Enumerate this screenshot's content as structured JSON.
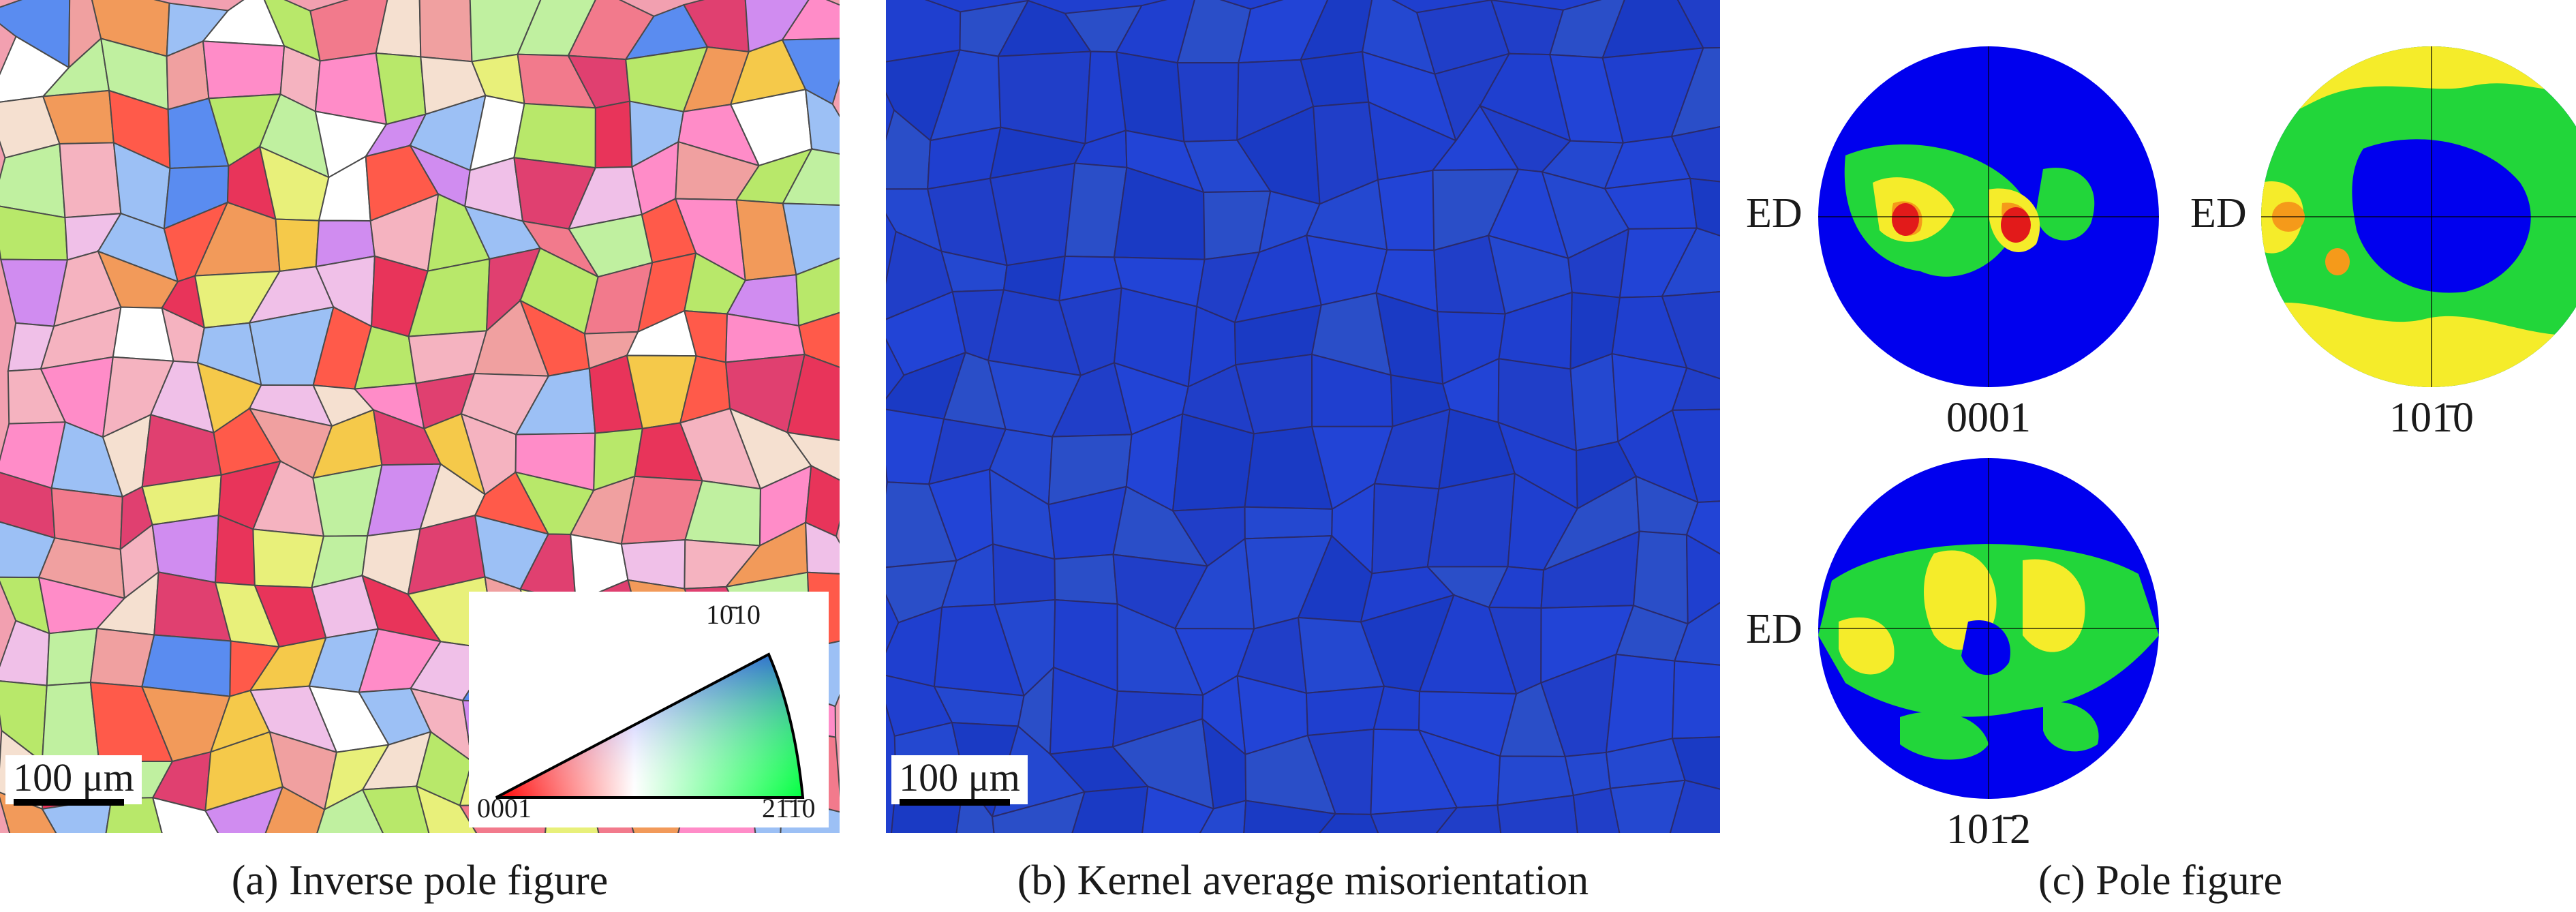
{
  "panels": {
    "a": {
      "caption": "(a) Inverse pole figure",
      "scale_bar": "100 μm",
      "legend": {
        "top": "10̄10",
        "bottom_left": "0001",
        "bottom_right": "21̄1̄0"
      }
    },
    "b": {
      "caption": "(b) Kernel average misorientation",
      "scale_bar": "100 μm"
    },
    "c": {
      "caption": "(c) Pole figure",
      "figures": [
        {
          "label": "0001",
          "axis": "ED"
        },
        {
          "label": "101̄0",
          "axis": "ED"
        },
        {
          "label": "101̄2",
          "axis": "ED"
        }
      ]
    }
  },
  "colors": {
    "ipf_red": "#e8345a",
    "kam_blue": "#1f3fcf",
    "pf_blue": "#0000ee",
    "pf_green": "#22d63a",
    "pf_yellow": "#f5ec2a",
    "pf_orange": "#f59a1a",
    "pf_red": "#e21a1a"
  }
}
